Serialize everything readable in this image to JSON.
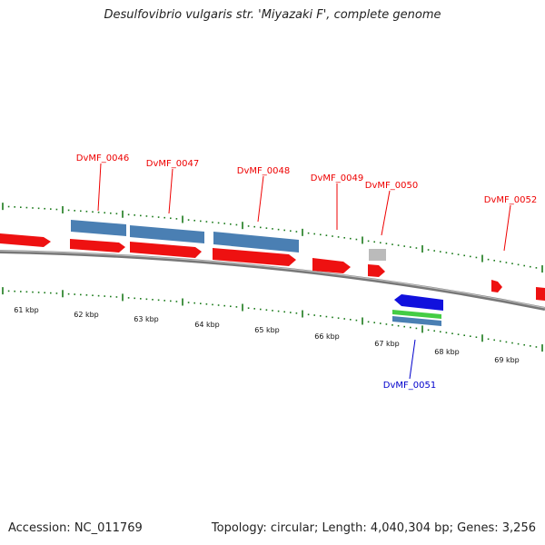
{
  "title": "Desulfovibrio vulgaris str. 'Miyazaki F', complete genome",
  "footer": {
    "accession": "Accession: NC_011769",
    "summary": "Topology: circular; Length: 4,040,304 bp; Genes: 3,256"
  },
  "colors": {
    "forward_gene": "#ee1111",
    "reverse_gene": "#1111dd",
    "cds": "#4a7fb3",
    "misc": "#bbbbbb",
    "extra": "#44cc44",
    "ruler": "#1a7a1a",
    "backbone": "#777777"
  },
  "kbp_ticks": [
    "61 kbp",
    "62 kbp",
    "63 kbp",
    "64 kbp",
    "65 kbp",
    "66 kbp",
    "67 kbp",
    "68 kbp",
    "69 kbp"
  ],
  "gene_labels": [
    {
      "id": "DvMF_0046",
      "strand": "forward"
    },
    {
      "id": "DvMF_0047",
      "strand": "forward"
    },
    {
      "id": "DvMF_0048",
      "strand": "forward"
    },
    {
      "id": "DvMF_0049",
      "strand": "forward"
    },
    {
      "id": "DvMF_0050",
      "strand": "forward"
    },
    {
      "id": "DvMF_0051",
      "strand": "reverse"
    },
    {
      "id": "DvMF_0052",
      "strand": "forward"
    }
  ]
}
